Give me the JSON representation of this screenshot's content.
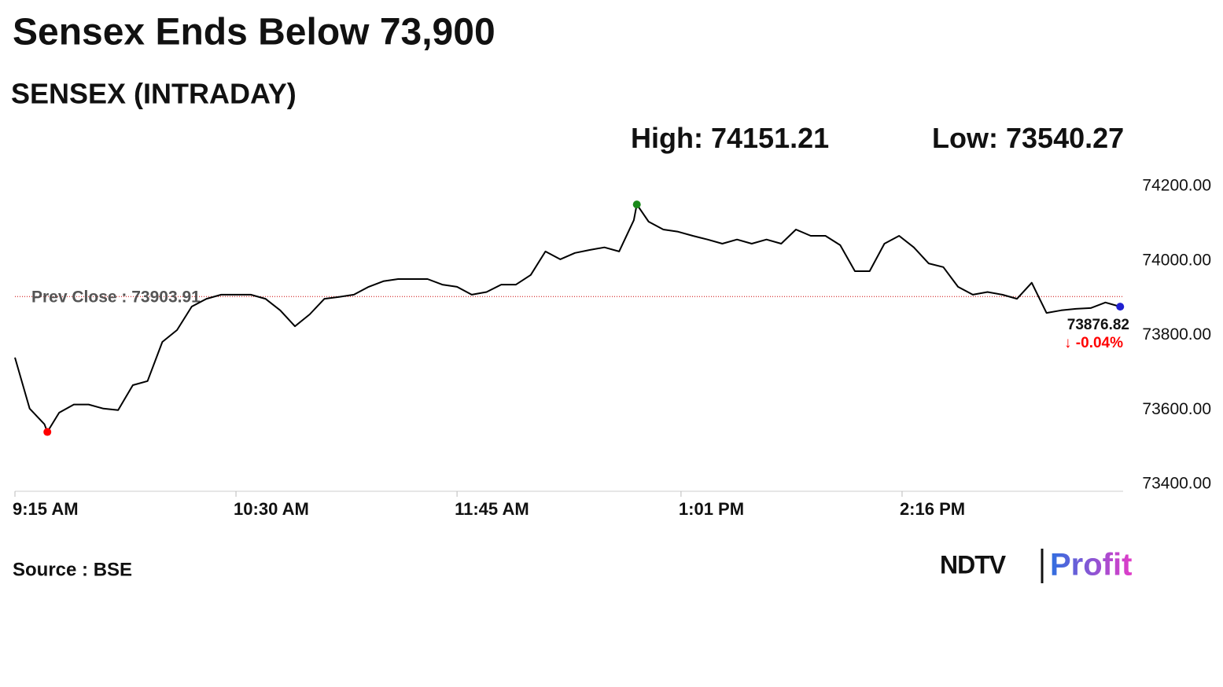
{
  "chart_data": {
    "type": "line",
    "title": "Sensex Ends Below 73,900",
    "subtitle": "SENSEX (INTRADAY)",
    "high": {
      "label": "High:",
      "value": 74151.21
    },
    "low": {
      "label": "Low:",
      "value": 73540.27
    },
    "prev_close": {
      "label": "Prev Close :",
      "value": 73903.91
    },
    "change": {
      "value": -0.04,
      "label": "↓ -0.04%"
    },
    "source": "Source : BSE",
    "logo": {
      "left": "NDTV",
      "right": "Profit"
    },
    "x": [
      "9:15 AM",
      "9:20 AM",
      "9:25 AM",
      "9:26 AM",
      "9:30 AM",
      "9:35 AM",
      "9:40 AM",
      "9:45 AM",
      "9:50 AM",
      "9:55 AM",
      "10:00 AM",
      "10:05 AM",
      "10:10 AM",
      "10:15 AM",
      "10:20 AM",
      "10:25 AM",
      "10:30 AM",
      "10:35 AM",
      "10:40 AM",
      "10:45 AM",
      "10:50 AM",
      "10:55 AM",
      "11:00 AM",
      "11:05 AM",
      "11:10 AM",
      "11:15 AM",
      "11:20 AM",
      "11:25 AM",
      "11:30 AM",
      "11:35 AM",
      "11:40 AM",
      "11:45 AM",
      "11:50 AM",
      "11:55 AM",
      "12:00 PM",
      "12:05 PM",
      "12:10 PM",
      "12:15 PM",
      "12:20 PM",
      "12:25 PM",
      "12:30 PM",
      "12:35 PM",
      "12:40 PM",
      "12:45 PM",
      "12:46 PM",
      "12:50 PM",
      "12:55 PM",
      "1:00 PM",
      "1:05 PM",
      "1:10 PM",
      "1:15 PM",
      "1:20 PM",
      "1:25 PM",
      "1:30 PM",
      "1:35 PM",
      "1:40 PM",
      "1:45 PM",
      "1:50 PM",
      "1:55 PM",
      "2:00 PM",
      "2:05 PM",
      "2:10 PM",
      "2:15 PM",
      "2:20 PM",
      "2:25 PM",
      "2:30 PM",
      "2:35 PM",
      "2:40 PM",
      "2:45 PM",
      "2:50 PM",
      "2:55 PM",
      "3:00 PM",
      "3:05 PM",
      "3:10 PM",
      "3:15 PM",
      "3:20 PM",
      "3:25 PM",
      "3:30 PM"
    ],
    "values": [
      73740,
      73603,
      73561,
      73540.27,
      73592,
      73614,
      73614,
      73603,
      73599,
      73666,
      73677,
      73782,
      73814,
      73877,
      73898,
      73909,
      73909,
      73909,
      73898,
      73867,
      73824,
      73856,
      73898,
      73903,
      73909,
      73930,
      73945,
      73951,
      73951,
      73951,
      73936,
      73930,
      73909,
      73916,
      73936,
      73936,
      73962,
      74025,
      74004,
      74021,
      74029,
      74036,
      74025,
      74109,
      74151.21,
      74105,
      74084,
      74078,
      74067,
      74057,
      74046,
      74057,
      74046,
      74057,
      74046,
      74084,
      74067,
      74067,
      74042,
      73972,
      73972,
      74046,
      74067,
      74036,
      73993,
      73983,
      73930,
      73909,
      73916,
      73909,
      73898,
      73941,
      73860,
      73867,
      73871,
      73873,
      73888,
      73876.82
    ],
    "color": "#000000",
    "high_color": "#1a8a1a",
    "low_color": "#ff0000",
    "last_color": "#1f1fd0",
    "prev_close_color": "#cc0000",
    "xlim": [
      "9:15 AM",
      "3:31 PM"
    ],
    "xticks": [
      "9:15 AM",
      "10:30 AM",
      "11:45 AM",
      "1:01 PM",
      "2:16 PM"
    ],
    "ylim": [
      73400,
      74200
    ],
    "yticks": [
      {
        "value": 73400,
        "label": "73400.00"
      },
      {
        "value": 73600,
        "label": "73600.00"
      },
      {
        "value": 73800,
        "label": "73800.00"
      },
      {
        "value": 74000,
        "label": "74000.00"
      },
      {
        "value": 74200,
        "label": "74200.00"
      }
    ],
    "grid": false
  }
}
